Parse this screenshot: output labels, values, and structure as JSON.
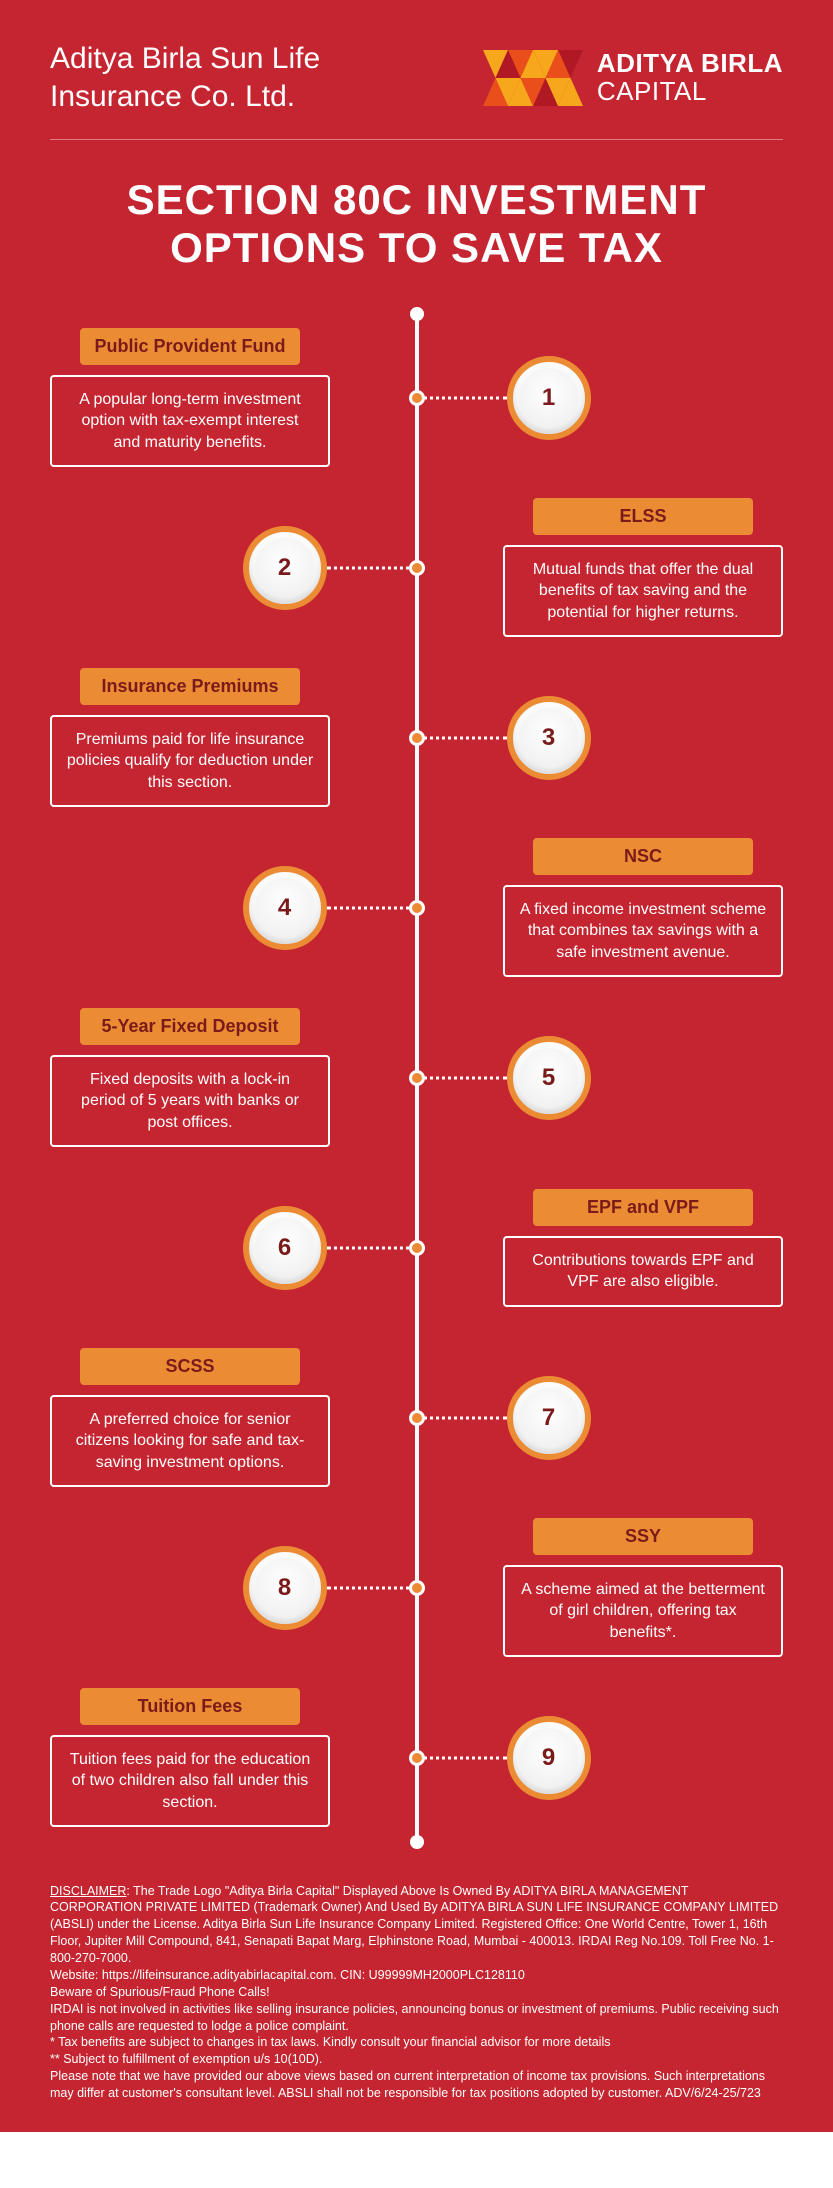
{
  "colors": {
    "background": "#c52530",
    "accent": "#eb8b33",
    "title_text": "#7a1a1a",
    "text_light": "#ffffff",
    "divider": "rgba(255,255,255,0.4)",
    "badge_face": "#f7f7f7"
  },
  "typography": {
    "title_fontsize": 42,
    "card_title_fontsize": 18,
    "card_desc_fontsize": 16,
    "disclaimer_fontsize": 12.5
  },
  "header": {
    "company_line1": "Aditya Birla Sun Life",
    "company_line2": "Insurance Co. Ltd.",
    "brand_line1": "ADITYA BIRLA",
    "brand_line2": "CAPITAL"
  },
  "title_line1": "SECTION 80C INVESTMENT",
  "title_line2": "OPTIONS TO SAVE TAX",
  "items": [
    {
      "n": "1",
      "side": "left",
      "title": "Public Provident Fund",
      "desc": "A popular long-term investment option with tax-exempt interest and maturity benefits."
    },
    {
      "n": "2",
      "side": "right",
      "title": "ELSS",
      "desc": "Mutual funds that offer the dual benefits of tax saving and the potential for higher returns."
    },
    {
      "n": "3",
      "side": "left",
      "title": "Insurance Premiums",
      "desc": "Premiums paid for life insurance policies qualify for deduction under this section."
    },
    {
      "n": "4",
      "side": "right",
      "title": "NSC",
      "desc": "A fixed income investment scheme that combines tax savings with a safe investment avenue."
    },
    {
      "n": "5",
      "side": "left",
      "title": "5-Year Fixed Deposit",
      "desc": "Fixed deposits with a lock-in period of 5 years with banks or post offices."
    },
    {
      "n": "6",
      "side": "right",
      "title": "EPF and VPF",
      "desc": "Contributions towards EPF and VPF are also eligible."
    },
    {
      "n": "7",
      "side": "left",
      "title": "SCSS",
      "desc": "A preferred choice for senior citizens looking for safe and tax-saving investment options."
    },
    {
      "n": "8",
      "side": "right",
      "title": "SSY",
      "desc": "A scheme aimed at the betterment of girl children, offering tax benefits*."
    },
    {
      "n": "9",
      "side": "left",
      "title": "Tuition Fees",
      "desc": "Tuition fees paid for the education of two children also fall under this section."
    }
  ],
  "disclaimer": {
    "label": "DISCLAIMER",
    "p1": ": The Trade Logo \"Aditya Birla Capital\" Displayed Above Is Owned By ADITYA BIRLA MANAGEMENT CORPORATION PRIVATE LIMITED (Trademark Owner) And Used By ADITYA BIRLA SUN LIFE INSURANCE COMPANY LIMITED (ABSLI) under the License. Aditya Birla Sun Life Insurance Company Limited. Registered Office: One World Centre, Tower 1, 16th Floor, Jupiter Mill Compound, 841, Senapati Bapat Marg, Elphinstone Road, Mumbai - 400013. IRDAI Reg No.109. Toll Free No. 1-800-270-7000.",
    "p2": "Website: https://lifeinsurance.adityabirlacapital.com. CIN: U99999MH2000PLC128110",
    "p3": "Beware of Spurious/Fraud Phone Calls!",
    "p4": "IRDAI is not involved in activities like selling insurance policies, announcing bonus or investment of premiums. Public receiving such phone calls are requested to lodge a police complaint.",
    "p5": "* Tax benefits are subject to changes in tax laws. Kindly consult your financial advisor for more details",
    "p6": "** Subject to fulfillment of exemption u/s 10(10D).",
    "p7": "Please note that we have provided our above views based on current interpretation of income tax provisions. Such interpretations may differ at customer's consultant level. ABSLI shall not be responsible for tax positions adopted by customer. ADV/6/24-25/723"
  }
}
